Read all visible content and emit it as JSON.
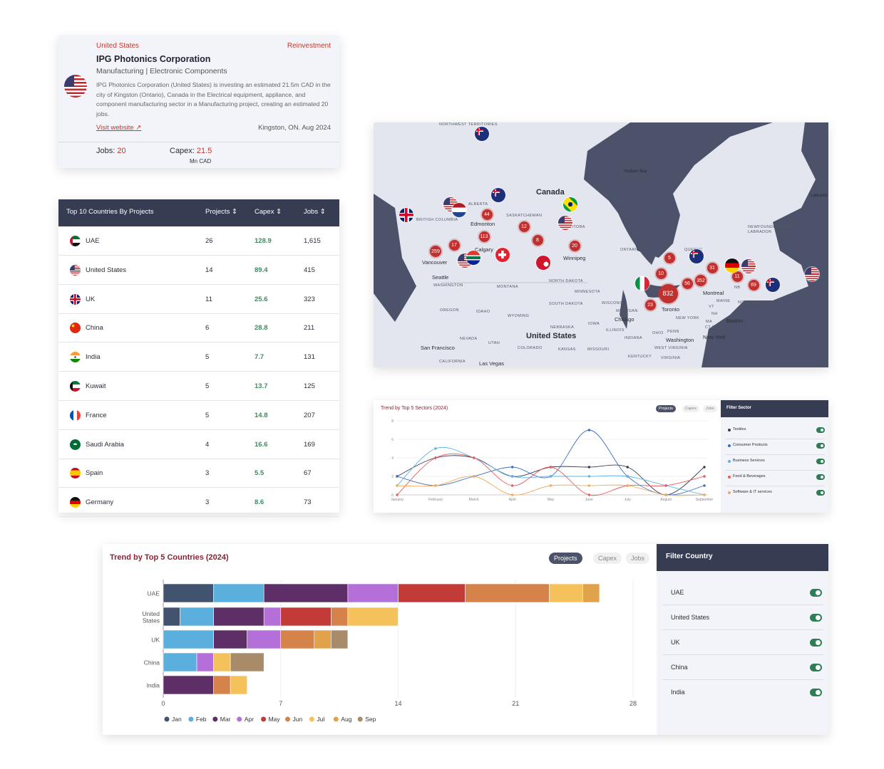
{
  "card": {
    "country": "United States",
    "type": "Reinvestment",
    "title": "IPG Photonics Corporation",
    "sector": "Manufacturing | Electronic Components",
    "description": "IPG Photonics Corporation (United States) is investing an estimated 21.5m CAD in the city of Kingston (Ontario), Canada in the Electrical equipment, appliance, and component manufacturing sector in a Manufacturing project, creating an estimated 20 jobs.",
    "visit_label": "Visit website",
    "location_date": "Kingston, ON. Aug 2024",
    "jobs_label": "Jobs:",
    "jobs_value": "20",
    "capex_label": "Capex:",
    "capex_value": "21.5",
    "capex_unit": "Mn CAD",
    "flag": "us"
  },
  "table": {
    "title": "Top 10 Countries By Projects",
    "columns": [
      "Projects",
      "Capex",
      "Jobs"
    ],
    "rows": [
      {
        "flag": "ae",
        "country": "UAE",
        "projects": "26",
        "capex": "128.9",
        "jobs": "1,615"
      },
      {
        "flag": "us",
        "country": "United States",
        "projects": "14",
        "capex": "89.4",
        "jobs": "415"
      },
      {
        "flag": "gb",
        "country": "UK",
        "projects": "11",
        "capex": "25.6",
        "jobs": "323"
      },
      {
        "flag": "cn",
        "country": "China",
        "projects": "6",
        "capex": "28.8",
        "jobs": "211"
      },
      {
        "flag": "in",
        "country": "India",
        "projects": "5",
        "capex": "7.7",
        "jobs": "131"
      },
      {
        "flag": "kw",
        "country": "Kuwait",
        "projects": "5",
        "capex": "13.7",
        "jobs": "125"
      },
      {
        "flag": "fr",
        "country": "France",
        "projects": "5",
        "capex": "14.8",
        "jobs": "207"
      },
      {
        "flag": "sa",
        "country": "Saudi Arabia",
        "projects": "4",
        "capex": "16.6",
        "jobs": "169"
      },
      {
        "flag": "es",
        "country": "Spain",
        "projects": "3",
        "capex": "5.5",
        "jobs": "67"
      },
      {
        "flag": "de",
        "country": "Germany",
        "projects": "3",
        "capex": "8.6",
        "jobs": "73"
      }
    ]
  },
  "map": {
    "cities": [
      "Canada",
      "Hudson Bay",
      "Edmonton",
      "Calgary",
      "Vancouver",
      "Winnipeg",
      "Seattle",
      "Toronto",
      "Montreal",
      "Chicago",
      "United States",
      "Washington",
      "New York",
      "Boston",
      "San Francisco",
      "Las Vegas",
      "Labrador"
    ],
    "regions": [
      "NORTHWEST TERRITORIES",
      "ALBERTA",
      "BRITISH COLUMBIA",
      "SASKATCHEWAN",
      "MANITOBA",
      "ONTARIO",
      "QUEBEC",
      "NEWFOUNDLAND AND LABRADOR",
      "WASHINGTON",
      "MONTANA",
      "NORTH DAKOTA",
      "MINNESOTA",
      "SOUTH DAKOTA",
      "OREGON",
      "IDAHO",
      "WYOMING",
      "WISCONSIN",
      "MICHIGAN",
      "NEBRASKA",
      "IOWA",
      "ILLINOIS",
      "NEW YORK",
      "MAINE",
      "NB",
      "NOVA SCOTIA",
      "VT",
      "NH",
      "MA",
      "CT RI",
      "PENN",
      "OHIO",
      "INDIANA",
      "NEVADA",
      "UTAH",
      "COLORADO",
      "KANSAS",
      "MISSOURI",
      "WEST VIRGINIA",
      "VIRGINIA",
      "KENTUCKY",
      "CALIFORNIA"
    ],
    "clusters": [
      "44",
      "12",
      "113",
      "8",
      "17",
      "259",
      "20",
      "5",
      "10",
      "31",
      "56",
      "352",
      "11",
      "69",
      "832",
      "23"
    ],
    "flags": [
      "au",
      "us",
      "nl",
      "au",
      "gb",
      "br",
      "us",
      "us",
      "za",
      "ch",
      "bm",
      "it",
      "au",
      "de",
      "us",
      "au",
      "us"
    ]
  },
  "sector_chart": {
    "title": "Trend by Top 5 Sectors (2024)",
    "tabs": [
      "Projects",
      "Capex",
      "Jobs"
    ],
    "active_tab": "Projects",
    "filter_title": "Filter Sector",
    "chart_data": {
      "type": "line",
      "x": [
        "January",
        "February",
        "March",
        "April",
        "May",
        "June",
        "July",
        "August",
        "September"
      ],
      "ylim": [
        0,
        8
      ],
      "yticks": [
        "0",
        "2",
        "4",
        "6",
        "8"
      ],
      "grid": true,
      "series": [
        {
          "name": "Textiles",
          "color": "#363d52",
          "values": [
            2,
            4,
            4,
            2,
            3,
            3,
            3,
            0,
            3
          ]
        },
        {
          "name": "Consumer Products",
          "color": "#3a6fc4",
          "values": [
            2,
            1,
            2,
            3,
            2,
            7,
            2,
            0,
            1
          ]
        },
        {
          "name": "Business Services",
          "color": "#5bb3e6",
          "values": [
            1,
            5,
            4,
            2,
            2,
            2,
            2,
            1,
            0
          ]
        },
        {
          "name": "Food & Beverages",
          "color": "#ee5a5a",
          "values": [
            0,
            4,
            4,
            1,
            3,
            0,
            1,
            1,
            2
          ]
        },
        {
          "name": "Software & IT services",
          "color": "#f5a95a",
          "values": [
            1,
            1,
            2,
            0,
            1,
            1,
            1,
            0,
            0
          ]
        }
      ]
    }
  },
  "country_chart": {
    "title": "Trend by Top 5 Countries (2024)",
    "tabs": [
      "Projects",
      "Capex",
      "Jobs"
    ],
    "active_tab": "Projects",
    "filter_title": "Filter Country",
    "filters": [
      "UAE",
      "United States",
      "UK",
      "China",
      "India"
    ],
    "chart_data": {
      "type": "bar",
      "orientation": "horizontal",
      "stacked": true,
      "categories": [
        "UAE",
        "United States",
        "UK",
        "China",
        "India"
      ],
      "xlim": [
        0,
        28
      ],
      "xticks": [
        "0",
        "7",
        "14",
        "21",
        "28"
      ],
      "grid": true,
      "legend": "bottom",
      "series": [
        {
          "name": "Jan",
          "color": "#425370",
          "values": [
            3,
            1,
            0,
            0,
            0
          ]
        },
        {
          "name": "Feb",
          "color": "#5aafdc",
          "values": [
            3,
            2,
            3,
            2,
            0
          ]
        },
        {
          "name": "Mar",
          "color": "#5e2f66",
          "values": [
            5,
            3,
            2,
            0,
            3
          ]
        },
        {
          "name": "Apr",
          "color": "#b56fd8",
          "values": [
            3,
            1,
            2,
            1,
            0
          ]
        },
        {
          "name": "May",
          "color": "#c23b37",
          "values": [
            4,
            3,
            0,
            0,
            0
          ]
        },
        {
          "name": "Jun",
          "color": "#d6834b",
          "values": [
            5,
            1,
            2,
            0,
            1
          ]
        },
        {
          "name": "Jul",
          "color": "#f5c15a",
          "values": [
            2,
            3,
            0,
            1,
            1
          ]
        },
        {
          "name": "Aug",
          "color": "#e0a24a",
          "values": [
            1,
            0,
            1,
            0,
            0
          ]
        },
        {
          "name": "Sep",
          "color": "#a88c6a",
          "values": [
            0,
            0,
            1,
            2,
            0
          ]
        }
      ]
    }
  }
}
